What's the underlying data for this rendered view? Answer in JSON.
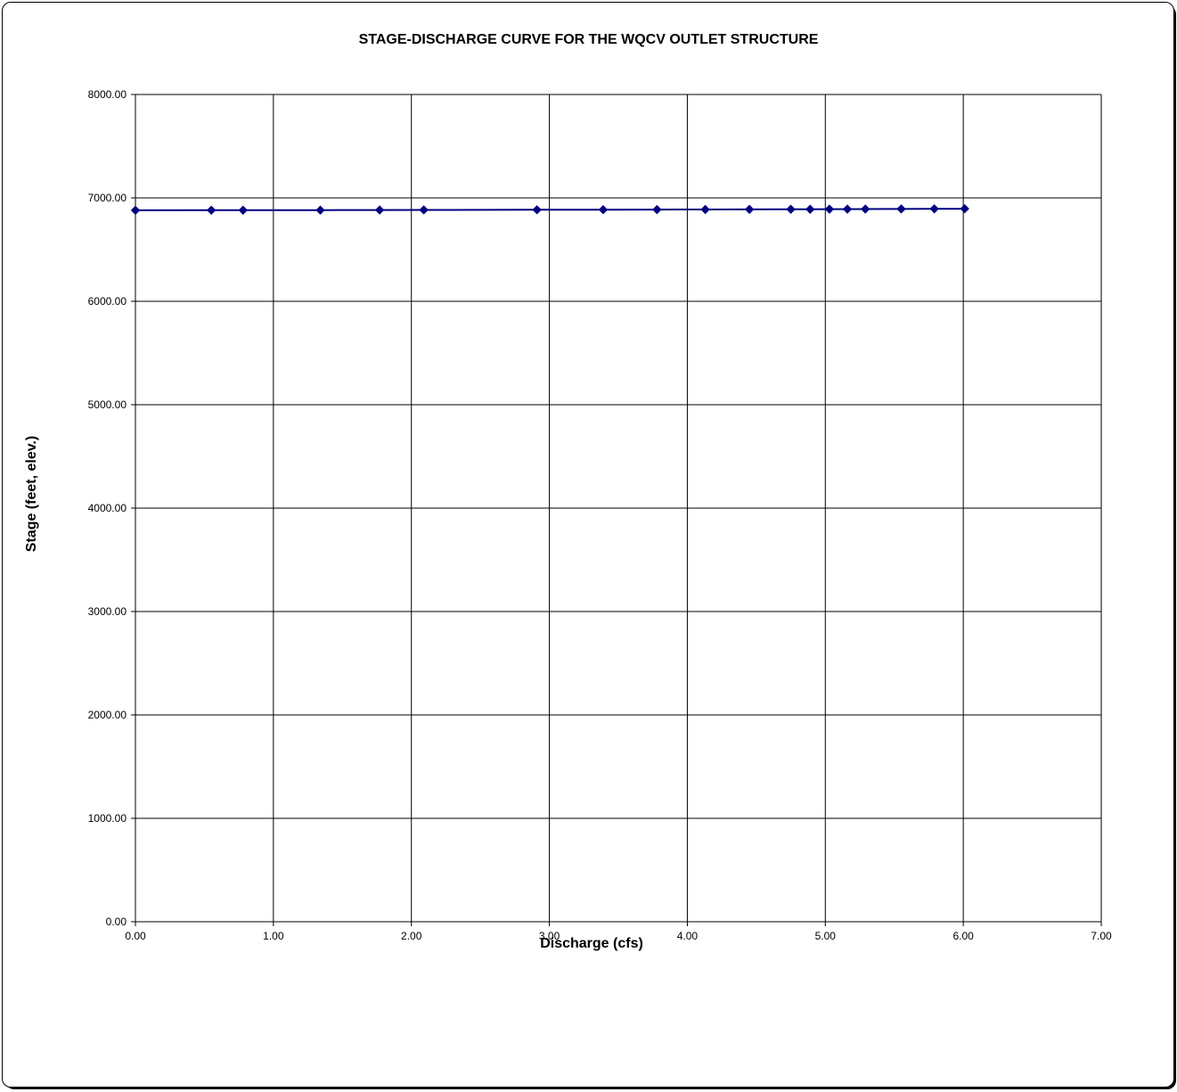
{
  "chart_data": {
    "type": "scatter",
    "title": "STAGE-DISCHARGE CURVE FOR THE WQCV OUTLET STRUCTURE",
    "xlabel": "Discharge (cfs)",
    "ylabel": "Stage (feet, elev.)",
    "xlim": [
      0,
      7
    ],
    "ylim": [
      0,
      8000
    ],
    "xticks": [
      "0.00",
      "1.00",
      "2.00",
      "3.00",
      "4.00",
      "5.00",
      "6.00",
      "7.00"
    ],
    "yticks": [
      "0.00",
      "1000.00",
      "2000.00",
      "3000.00",
      "4000.00",
      "5000.00",
      "6000.00",
      "7000.00",
      "8000.00"
    ],
    "grid": true,
    "legend": "none",
    "series_color": "#000080",
    "series": [
      {
        "x": [
          0.0,
          0.55,
          0.78,
          1.34,
          1.77,
          2.09,
          2.91,
          3.39,
          3.78,
          4.13,
          4.45,
          4.75,
          4.89,
          5.03,
          5.16,
          5.29,
          5.55,
          5.79,
          6.01
        ],
        "y": [
          6880,
          6881,
          6881,
          6882,
          6883,
          6884,
          6885,
          6886,
          6887,
          6888,
          6889,
          6890,
          6890,
          6891,
          6891,
          6892,
          6893,
          6894,
          6895
        ]
      }
    ]
  }
}
